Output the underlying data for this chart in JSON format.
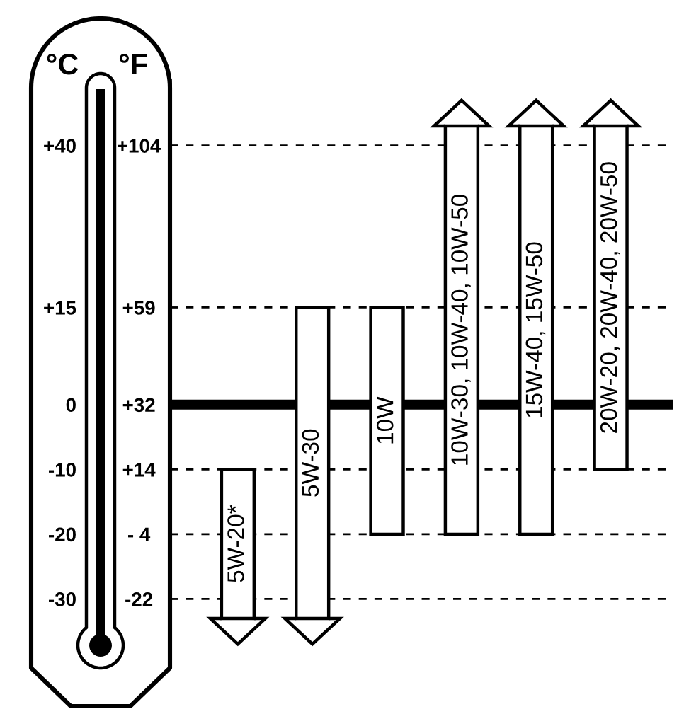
{
  "chart_data": {
    "type": "bar",
    "categories": [
      "5W-20*",
      "5W-30",
      "10W",
      "10W-30, 10W-40, 10W-50",
      "15W-40, 15W-50",
      "20W-20, 20W-40, 20W-50"
    ],
    "base": [
      -33,
      -33,
      -20,
      -20,
      -20,
      -10
    ],
    "values": [
      23,
      48,
      35,
      63,
      63,
      53
    ],
    "color": "#ffffff",
    "ylabel": "°C",
    "y2label": "°F",
    "ylim": [
      -40,
      50
    ],
    "yticks": [
      {
        "value": 40,
        "label": "+40"
      },
      {
        "value": 15,
        "label": "+15"
      },
      0,
      -10,
      -20,
      -30
    ],
    "y2lim": [
      -40,
      122
    ],
    "y2ticks": [
      {
        "value": 104,
        "label": "+104"
      },
      {
        "value": 59,
        "label": "+59"
      },
      {
        "value": 32,
        "label": "+32"
      },
      {
        "value": 14,
        "label": "+14"
      },
      {
        "value": -4,
        "label": "- 4"
      },
      -22
    ],
    "grid": "y"
  }
}
